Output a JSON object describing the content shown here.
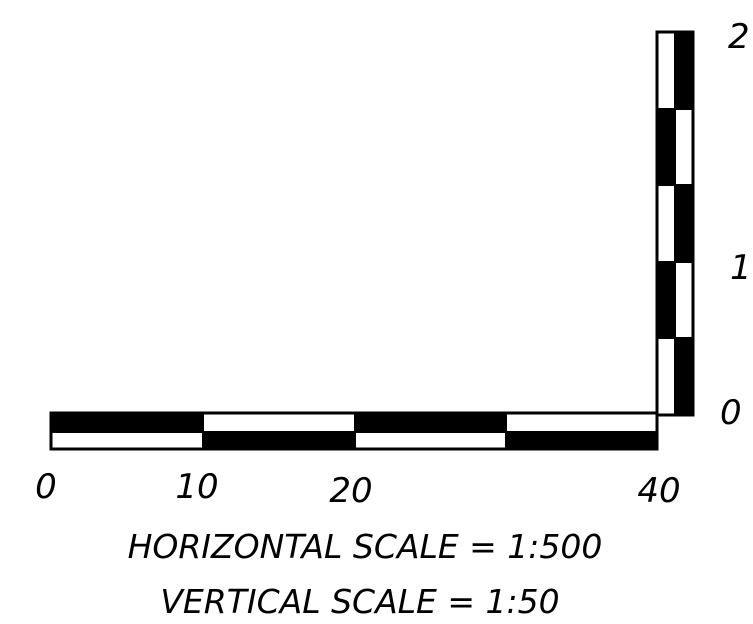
{
  "horizontal_bar": {
    "tick_labels": [
      "0",
      "10",
      "20",
      "40"
    ],
    "scale_text": "HORIZONTAL SCALE = 1:500"
  },
  "vertical_bar": {
    "tick_labels": [
      "0",
      "1",
      "2"
    ],
    "scale_text": "VERTICAL SCALE = 1:50"
  },
  "colors": {
    "ink": "#000000",
    "paper": "#ffffff"
  }
}
